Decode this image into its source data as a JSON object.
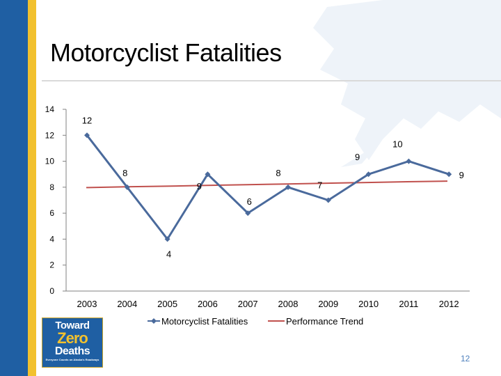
{
  "slide": {
    "title": "Motorcyclist Fatalities",
    "page_number": "12"
  },
  "logo": {
    "line1": "Toward",
    "line2": "Zero",
    "line3": "Deaths",
    "line4": "Everyone Counts on Alaska's Roadways"
  },
  "colors": {
    "series_line": "#4a6a9c",
    "trend_line": "#c0504d",
    "stripe_blue": "#1f5fa3",
    "stripe_gold": "#f2c12e"
  },
  "chart_data": {
    "type": "line",
    "categories": [
      "2003",
      "2004",
      "2005",
      "2006",
      "2007",
      "2008",
      "2009",
      "2010",
      "2011",
      "2012"
    ],
    "ylim": [
      0,
      14
    ],
    "yticks": [
      0,
      2,
      4,
      6,
      8,
      10,
      12,
      14
    ],
    "grid": false,
    "legend_position": "bottom",
    "series": [
      {
        "name": "Motorcyclist Fatalities",
        "values": [
          12,
          8,
          4,
          9,
          6,
          8,
          7,
          9,
          10,
          9
        ],
        "data_labels": [
          "12",
          "8",
          "4",
          "9",
          "6",
          "8",
          "7",
          "9",
          "10",
          "9"
        ],
        "marker": "diamond"
      },
      {
        "name": "Performance Trend",
        "values": [
          7.97,
          8.03,
          8.08,
          8.14,
          8.19,
          8.25,
          8.31,
          8.36,
          8.42,
          8.47
        ],
        "marker": "none"
      }
    ]
  }
}
